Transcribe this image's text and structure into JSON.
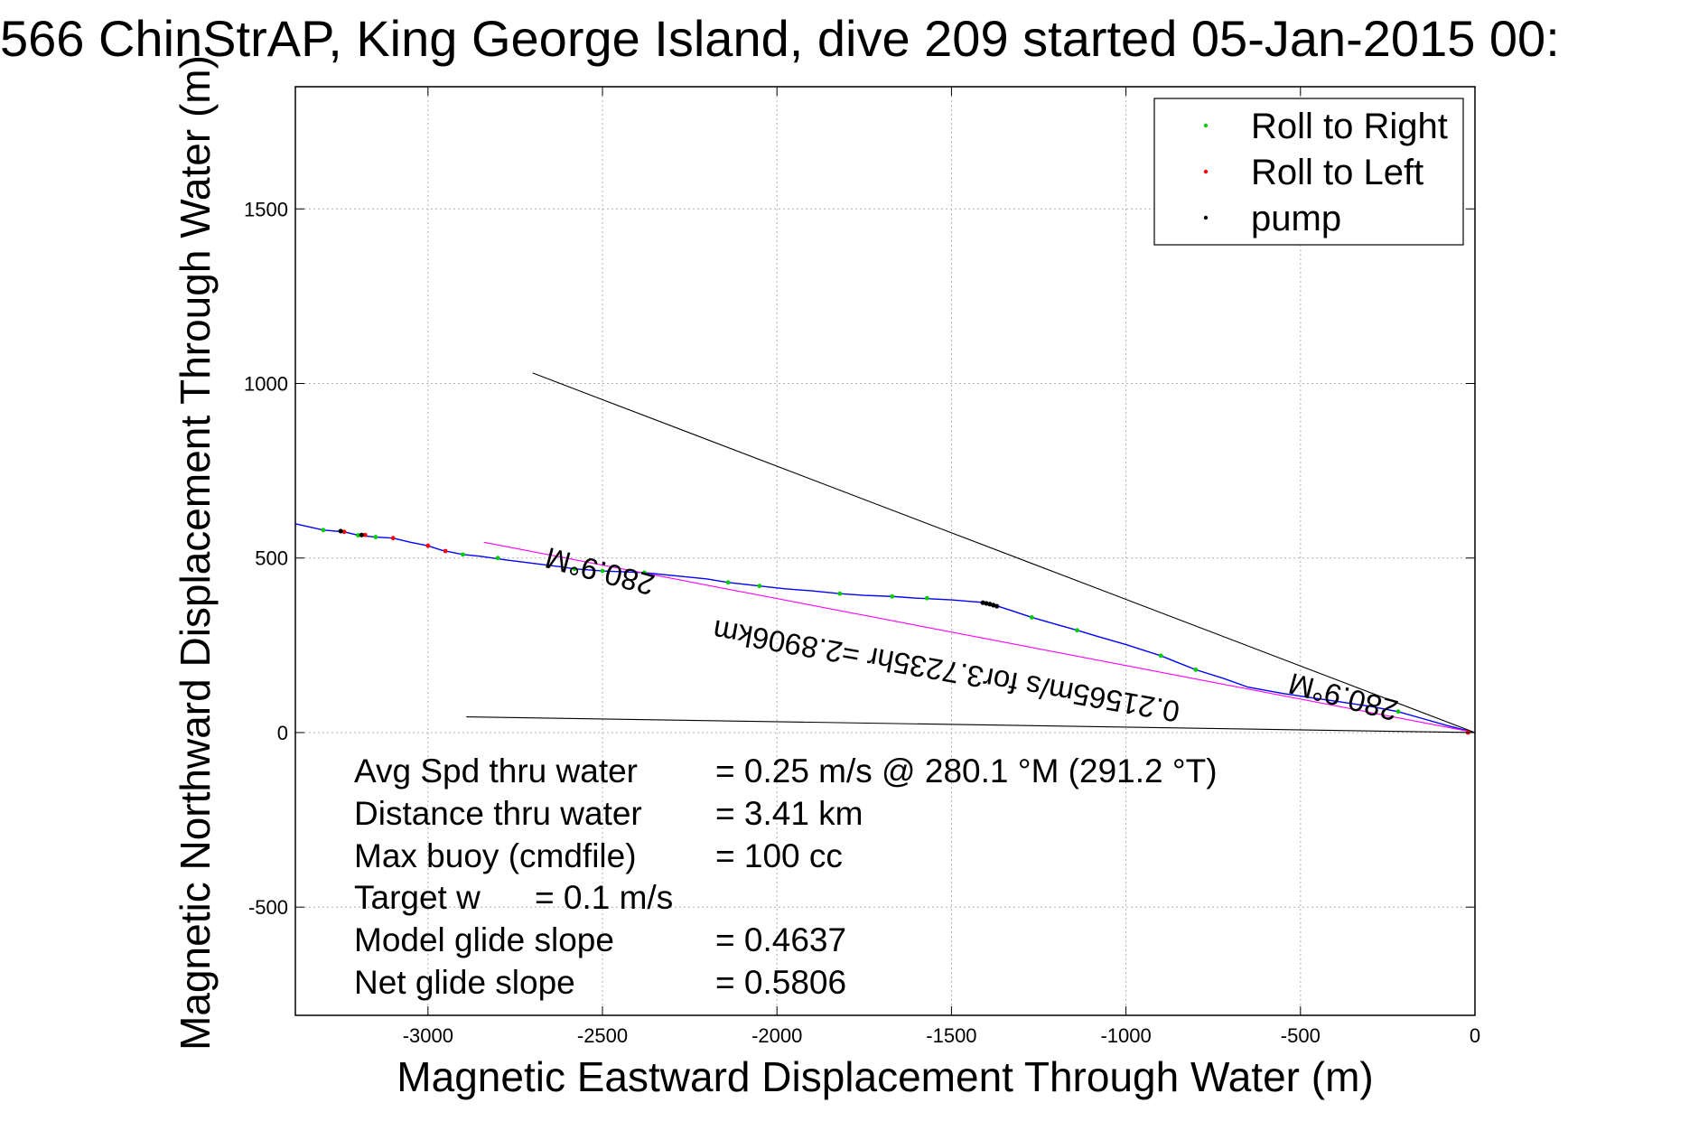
{
  "chart_data": {
    "type": "line",
    "title": "566 ChinStrAP, King George Island, dive 209 started 05-Jan-2015 00:",
    "xlabel": "Magnetic Eastward Displacement Through Water (m)",
    "ylabel": "Magnetic Northward Displacement Through Water (m)",
    "xlim": [
      -3380,
      0
    ],
    "ylim": [
      -810,
      1850
    ],
    "xticks": [
      -3000,
      -2500,
      -2000,
      -1500,
      -1000,
      -500,
      0
    ],
    "yticks": [
      -500,
      0,
      500,
      1000,
      1500
    ],
    "grid": true,
    "legend_position": "top-right",
    "legend": [
      {
        "label": "Roll to Right",
        "color": "#00cc00"
      },
      {
        "label": "Roll to Left",
        "color": "#ff0000"
      },
      {
        "label": "pump",
        "color": "#000000"
      }
    ],
    "series": [
      {
        "kind": "track",
        "color": "#0000ff",
        "x": [
          -3380,
          -3300,
          -3240,
          -3200,
          -3150,
          -3100,
          -3050,
          -3000,
          -2960,
          -2900,
          -2850,
          -2780,
          -2700,
          -2620,
          -2580,
          -2500,
          -2380,
          -2300,
          -2200,
          -2140,
          -2050,
          -1980,
          -1900,
          -1820,
          -1750,
          -1670,
          -1600,
          -1500,
          -1450,
          -1400,
          -1370,
          -1330,
          -1270,
          -1200,
          -1140,
          -1080,
          -1000,
          -900,
          -850,
          -800,
          -720,
          -650,
          -550,
          -470,
          -400,
          -300,
          -220,
          -150,
          -80,
          0
        ],
        "y": [
          598,
          580,
          575,
          565,
          560,
          557,
          545,
          535,
          522,
          510,
          505,
          495,
          485,
          475,
          469,
          463,
          458,
          450,
          440,
          430,
          420,
          412,
          406,
          398,
          393,
          390,
          385,
          380,
          376,
          372,
          363,
          350,
          330,
          310,
          293,
          275,
          252,
          220,
          200,
          180,
          155,
          130,
          112,
          100,
          90,
          75,
          60,
          40,
          20,
          0
        ]
      },
      {
        "kind": "heading_line",
        "color": "#ff00ff",
        "x": [
          -2840,
          0
        ],
        "y": [
          545,
          0
        ]
      },
      {
        "kind": "reference_line",
        "color": "#000000",
        "x": [
          -2700,
          0
        ],
        "y": [
          1030,
          0
        ]
      },
      {
        "kind": "reference_line",
        "color": "#000000",
        "x": [
          -2890,
          0
        ],
        "y": [
          45,
          0
        ]
      }
    ],
    "markers": {
      "roll_right": {
        "color": "#00cc00",
        "x": [
          -3300,
          -3200,
          -3150,
          -2900,
          -2800,
          -2580,
          -2500,
          -2380,
          -2140,
          -2050,
          -1820,
          -1670,
          -1570,
          -1270,
          -1140,
          -900,
          -800,
          -220
        ],
        "y": [
          580,
          565,
          560,
          510,
          500,
          469,
          463,
          458,
          430,
          420,
          398,
          390,
          385,
          330,
          293,
          220,
          180,
          60
        ]
      },
      "roll_left": {
        "color": "#ff0000",
        "x": [
          -3240,
          -3180,
          -3100,
          -3000,
          -2950,
          -20
        ],
        "y": [
          575,
          566,
          557,
          535,
          520,
          0
        ]
      },
      "pump": {
        "color": "#000000",
        "x": [
          -3250,
          -3190,
          -1410,
          -1400,
          -1390,
          -1380,
          -1370
        ],
        "y": [
          577,
          566,
          372,
          370,
          368,
          365,
          362
        ]
      }
    },
    "plot_annotations": [
      {
        "text": "280.9°M",
        "x": -2500,
        "y": 490,
        "rotate": 195
      },
      {
        "text": "0.21565m/s for3.7235hr =2.8906km",
        "x": -1510,
        "y": 205,
        "rotate": 190
      },
      {
        "text": "280.9°M",
        "x": -370,
        "y": 130,
        "rotate": 195
      }
    ],
    "stats": [
      {
        "label": "Avg Spd thru water",
        "value": "=  0.25 m/s @ 280.1 °M (291.2 °T)"
      },
      {
        "label": "Distance thru water",
        "value": "=  3.41 km"
      },
      {
        "label": "Max buoy (cmdfile)",
        "value": "= 100 cc"
      },
      {
        "label": "Target w",
        "value": "= 0.1 m/s"
      },
      {
        "label": "Model glide slope",
        "value": "= 0.4637"
      },
      {
        "label": "Net glide slope",
        "value": "= 0.5806"
      }
    ]
  }
}
